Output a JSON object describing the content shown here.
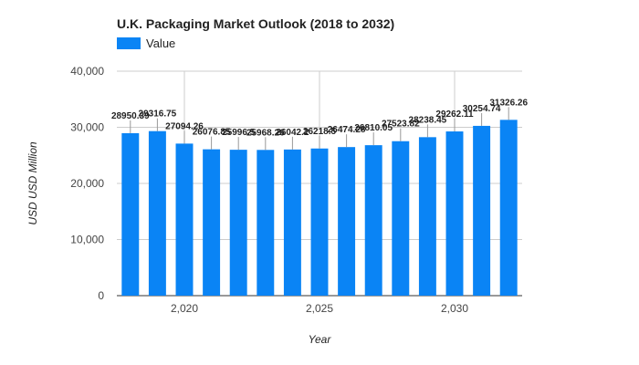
{
  "chart_data": {
    "type": "bar",
    "title": "U.K.  Packaging Market Outlook (2018 to 2032)",
    "legend": [
      "Value"
    ],
    "legend_placement": "top-left",
    "xlabel": "Year",
    "ylabel": "USD USD Million",
    "x": [
      2018,
      2019,
      2020,
      2021,
      2022,
      2023,
      2024,
      2025,
      2026,
      2027,
      2028,
      2029,
      2030,
      2031,
      2032
    ],
    "series": [
      {
        "name": "Value",
        "values": [
          28950.39,
          29316.75,
          27094.26,
          26076.85,
          25996.5,
          25968.26,
          26042.2,
          26218.5,
          26474.28,
          26810.05,
          27523.82,
          28238.45,
          29262.11,
          30254.74,
          31326.26
        ],
        "labels": [
          "28950.39",
          "29316.75",
          "27094.26",
          "26076.85",
          "25996.5",
          "25968.26",
          "26042.2",
          "26218.5",
          "26474.28",
          "26810.05",
          "27523.82",
          "28238.45",
          "29262.11",
          "30254.74",
          "31326.26"
        ]
      }
    ],
    "ylim": [
      0,
      40000
    ],
    "yticks": [
      0,
      10000,
      20000,
      30000,
      40000
    ],
    "ytick_labels": [
      "0",
      "10,000",
      "20,000",
      "30,000",
      "40,000"
    ],
    "xticks": [
      2020,
      2025,
      2030
    ],
    "xtick_labels": [
      "2,020",
      "2,025",
      "2,030"
    ],
    "grid": true,
    "bar_color": "#0a84f5"
  }
}
